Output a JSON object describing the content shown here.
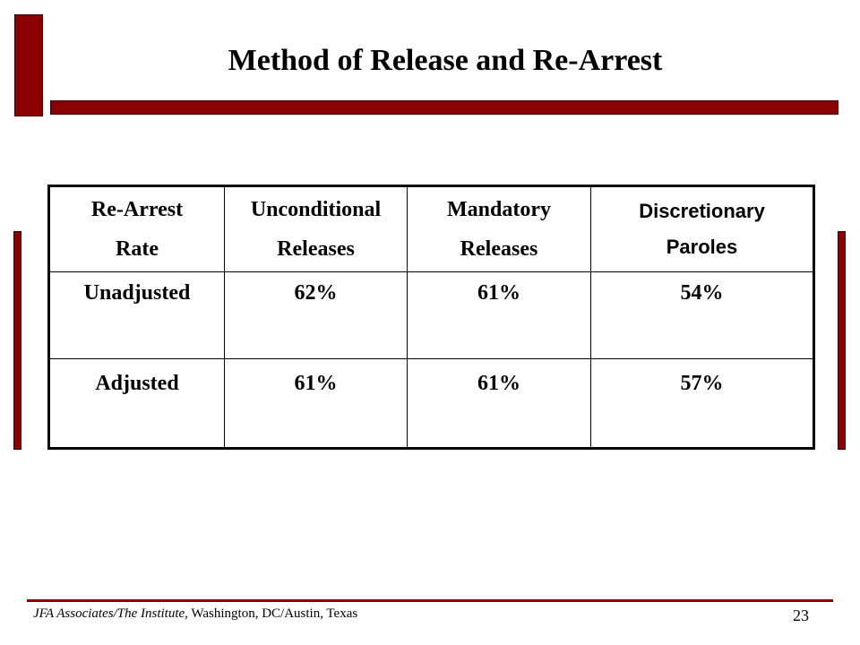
{
  "slide": {
    "title": "Method of Release and Re-Arrest",
    "accent_color": "#8b0000"
  },
  "table": {
    "headers": [
      {
        "line1": "Re-Arrest",
        "line2": "Rate"
      },
      {
        "line1": "Unconditional",
        "line2": "Releases"
      },
      {
        "line1": "Mandatory",
        "line2": "Releases"
      },
      {
        "line1": "Discretionary",
        "line2": "Paroles"
      }
    ],
    "rows": [
      {
        "label": "Unadjusted",
        "values": [
          "62%",
          "61%",
          "54%"
        ]
      },
      {
        "label": "Adjusted",
        "values": [
          "61%",
          "61%",
          "57%"
        ]
      }
    ]
  },
  "footer": {
    "source_italic": "JFA Associates/The Institute,",
    "source_plain": " Washington, DC/Austin, Texas",
    "page_number": "23"
  }
}
